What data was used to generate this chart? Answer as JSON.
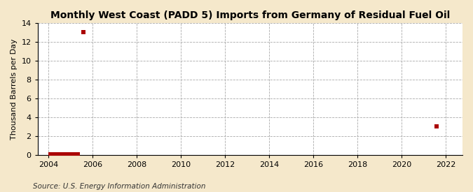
{
  "title": "Monthly West Coast (PADD 5) Imports from Germany of Residual Fuel Oil",
  "ylabel": "Thousand Barrels per Day",
  "source": "Source: U.S. Energy Information Administration",
  "background_color": "#f5e8cb",
  "plot_background_color": "#ffffff",
  "marker_color": "#aa0000",
  "xlim": [
    2003.5,
    2022.75
  ],
  "ylim": [
    0,
    14
  ],
  "yticks": [
    0,
    2,
    4,
    6,
    8,
    10,
    12,
    14
  ],
  "xticks": [
    2004,
    2006,
    2008,
    2010,
    2012,
    2014,
    2016,
    2018,
    2020,
    2022
  ],
  "data_x": [
    2004.083,
    2004.167,
    2004.25,
    2004.333,
    2004.417,
    2004.5,
    2004.583,
    2004.667,
    2004.75,
    2004.833,
    2004.917,
    2005.0,
    2005.083,
    2005.167,
    2005.25,
    2005.333,
    2005.583,
    2021.583
  ],
  "data_y": [
    0.07,
    0.07,
    0.07,
    0.07,
    0.07,
    0.07,
    0.07,
    0.07,
    0.07,
    0.07,
    0.07,
    0.07,
    0.07,
    0.07,
    0.07,
    0.07,
    13.0,
    3.0
  ],
  "marker_size": 18,
  "title_fontsize": 10,
  "tick_fontsize": 8,
  "ylabel_fontsize": 8,
  "source_fontsize": 7.5
}
